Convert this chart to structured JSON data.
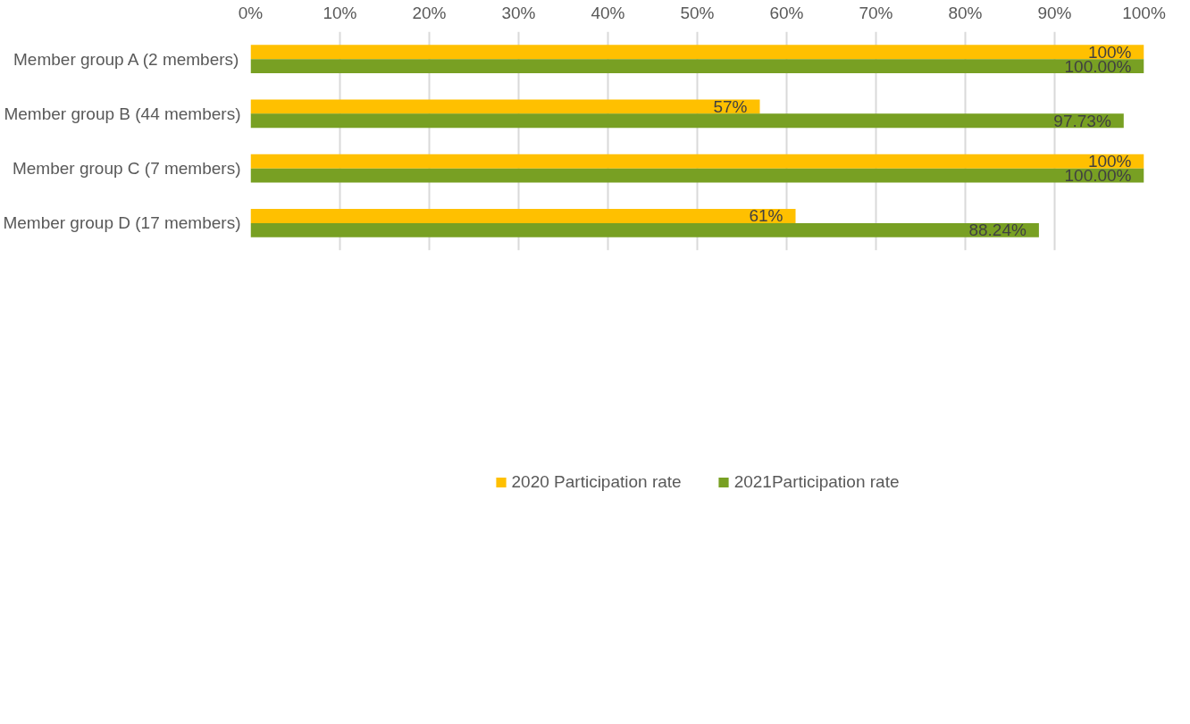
{
  "chart_data": {
    "type": "bar",
    "orientation": "horizontal",
    "categories": [
      "Member group A (2 members)",
      "Member group B (44 members)",
      "Member group C (7 members)",
      "Member group D (17 members)"
    ],
    "series": [
      {
        "name": "2020 Participation rate",
        "color": "#ffc000",
        "values": [
          100,
          57,
          100,
          61
        ],
        "value_labels": [
          "100%",
          "57%",
          "100%",
          "61%"
        ]
      },
      {
        "name": "2021Participation rate",
        "color": "#78a023",
        "values": [
          100,
          97.73,
          100,
          88.24
        ],
        "value_labels": [
          "100.00%",
          "97.73%",
          "100.00%",
          "88.24%"
        ]
      }
    ],
    "xlim": [
      0,
      100
    ],
    "xticks": [
      {
        "value": 0,
        "label": "0%"
      },
      {
        "value": 10,
        "label": "10%"
      },
      {
        "value": 20,
        "label": "20%"
      },
      {
        "value": 30,
        "label": "30%"
      },
      {
        "value": 40,
        "label": "40%"
      },
      {
        "value": 50,
        "label": "50%"
      },
      {
        "value": 60,
        "label": "60%"
      },
      {
        "value": 70,
        "label": "70%"
      },
      {
        "value": 80,
        "label": "80%"
      },
      {
        "value": 90,
        "label": "90%"
      },
      {
        "value": 100,
        "label": "100%"
      }
    ],
    "grid": "x",
    "legend": "bottom"
  }
}
